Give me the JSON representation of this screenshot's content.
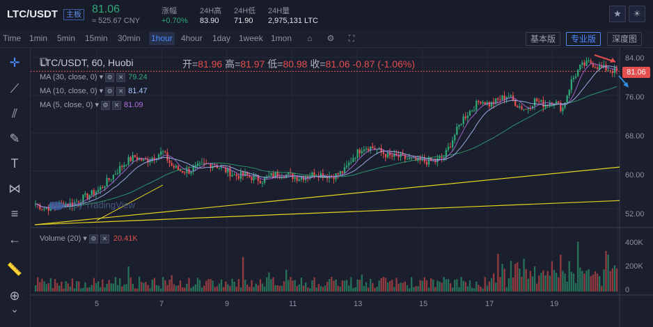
{
  "header": {
    "pair": "LTC/USDT",
    "main_badge": "主板",
    "price": "81.06",
    "cny": "≈ 525.67 CNY",
    "stats": [
      {
        "label": "涨幅",
        "value": "+0.70%",
        "color": "#2fa878"
      },
      {
        "label": "24H高",
        "value": "83.90",
        "color": "#e2e5ec"
      },
      {
        "label": "24H低",
        "value": "71.90",
        "color": "#e2e5ec"
      },
      {
        "label": "24H量",
        "value": "2,975,131 LTC",
        "color": "#e2e5ec"
      }
    ],
    "icons": [
      "star-icon",
      "theme-icon"
    ]
  },
  "toolbar": {
    "timeframes": [
      "Time",
      "1min",
      "5min",
      "15min",
      "30min",
      "1hour",
      "4hour",
      "1day",
      "1week",
      "1mon"
    ],
    "active": "1hour",
    "views": [
      "基本版",
      "专业版",
      "深度图"
    ],
    "active_view": "专业版"
  },
  "legend": {
    "symbol": "LTC/USDT, 60, Huobi",
    "open_label": "开=",
    "open": "81.96",
    "high_label": "高=",
    "high": "81.97",
    "low_label": "低=",
    "low": "80.98",
    "close_label": "收=",
    "close": "81.06",
    "change": "-0.87 (-1.06%)",
    "indicators": [
      {
        "name": "MA (30, close, 0)",
        "value": "79.24",
        "color": "#2fa878"
      },
      {
        "name": "MA (10, close, 0)",
        "value": "81.47",
        "color": "#a9c6ff"
      },
      {
        "name": "MA (5, close, 0)",
        "value": "81.09",
        "color": "#b070e0"
      }
    ],
    "volume_label": "Volume (20)",
    "volume_value": "20.41K"
  },
  "watermark": "Chart by TradingView",
  "last_price_tag": "81.06",
  "colors": {
    "up": "#2fa878",
    "down": "#e34f4f",
    "trend": "#e6d51e",
    "accent": "#4e8cff"
  },
  "chart_data": {
    "type": "candlestick",
    "title": "LTC/USDT, 60, Huobi",
    "y_ticks": [
      "84.00",
      "76.00",
      "68.00",
      "60.00",
      "52.00"
    ],
    "volume_ticks": [
      "400K",
      "200K",
      "0"
    ],
    "x_ticks": [
      "5",
      "7",
      "9",
      "11",
      "13",
      "15",
      "17",
      "19"
    ],
    "ylim": [
      48,
      86
    ],
    "close_series": [
      53,
      52,
      52.5,
      53,
      53,
      54,
      55,
      56,
      58,
      60,
      62,
      63,
      62,
      63,
      64,
      61,
      60,
      60,
      61,
      61.5,
      61,
      60,
      59,
      59,
      58.5,
      58,
      59,
      59.5,
      59,
      58.5,
      59,
      59.5,
      59,
      59,
      60,
      63,
      65,
      65,
      64,
      63,
      63,
      62.5,
      62,
      62,
      62,
      63,
      67,
      71,
      73,
      75,
      74,
      75,
      76,
      74,
      73,
      75,
      74,
      75,
      73,
      79,
      82,
      83,
      82,
      81.5,
      81
    ]
  }
}
